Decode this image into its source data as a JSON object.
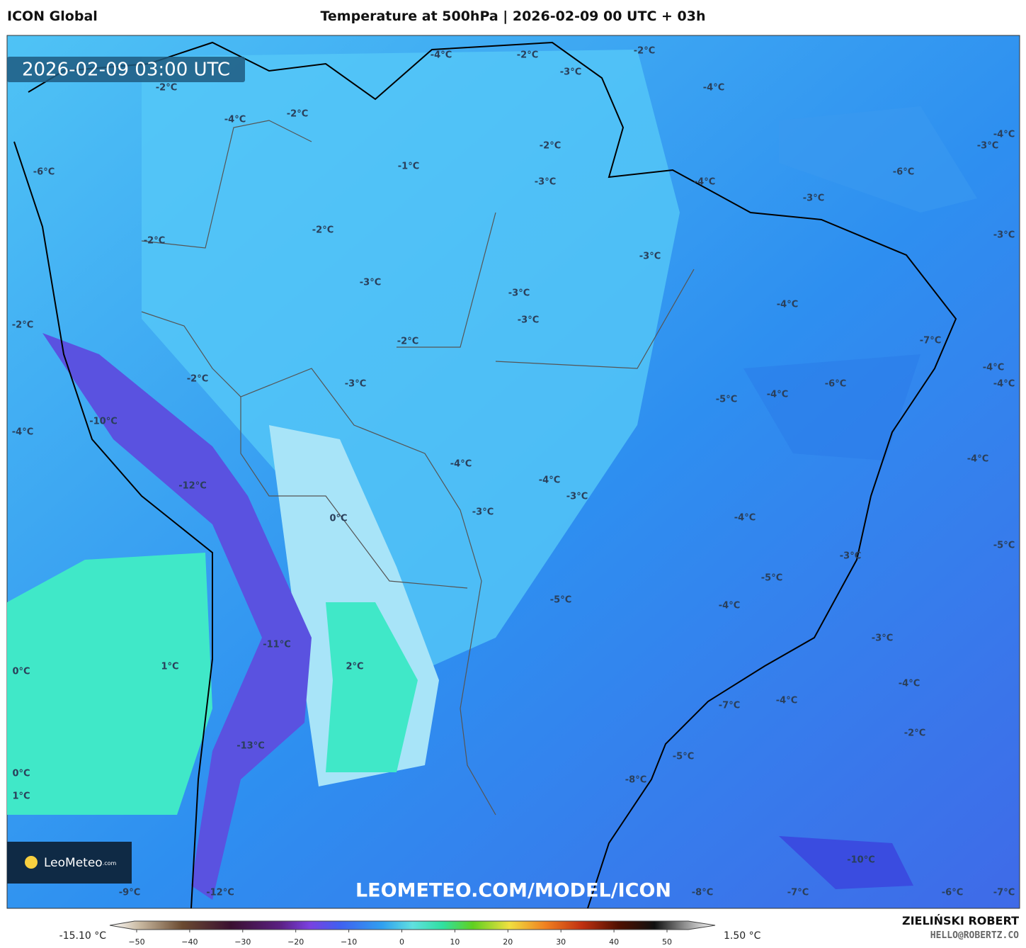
{
  "header": {
    "model": "ICON Global",
    "title": "Temperature at 500hPa | 2026-02-09 00 UTC + 03h"
  },
  "map": {
    "timestamp": "2026-02-09 03:00 UTC",
    "logo": "LeoMeteo",
    "logo_suffix": ".com",
    "watermark": "LEOMETEO.COM/MODEL/ICON",
    "contour_labels": [
      "-4°C",
      "-2°C",
      "-2°C",
      "-3°C",
      "-4°C",
      "-2°C",
      "-2°C",
      "-4°C",
      "-4°C",
      "-3°C",
      "-2°C",
      "-1°C",
      "-6°C",
      "-6°C",
      "-3°C",
      "-4°C",
      "-3°C",
      "-2°C",
      "-3°C",
      "-2°C",
      "-3°C",
      "-3°C",
      "-3°C",
      "-4°C",
      "-3°C",
      "-2°C",
      "-7°C",
      "-2°C",
      "-4°C",
      "-2°C",
      "-3°C",
      "-6°C",
      "-4°C",
      "-4°C",
      "-5°C",
      "-10°C",
      "-4°C",
      "-4°C",
      "-4°C",
      "-4°C",
      "-12°C",
      "-3°C",
      "-3°C",
      "-4°C",
      "0°C",
      "-5°C",
      "-3°C",
      "-5°C",
      "-5°C",
      "-4°C",
      "-3°C",
      "-11°C",
      "1°C",
      "2°C",
      "0°C",
      "-4°C",
      "-7°C",
      "-4°C",
      "-2°C",
      "-13°C",
      "-5°C",
      "0°C",
      "-8°C",
      "1°C",
      "-10°C",
      "-9°C",
      "-12°C",
      "-8°C",
      "-7°C",
      "-6°C",
      "-7°C"
    ]
  },
  "legend": {
    "min_label": "-15.10 °C",
    "max_label": "1.50 °C",
    "ticks": [
      "−50",
      "−40",
      "−30",
      "−20",
      "−10",
      "0",
      "10",
      "20",
      "30",
      "40",
      "50"
    ]
  },
  "footer": {
    "author": "ZIELIŃSKI ROBERT",
    "email": "HELLO@ROBERTZ.CO"
  }
}
